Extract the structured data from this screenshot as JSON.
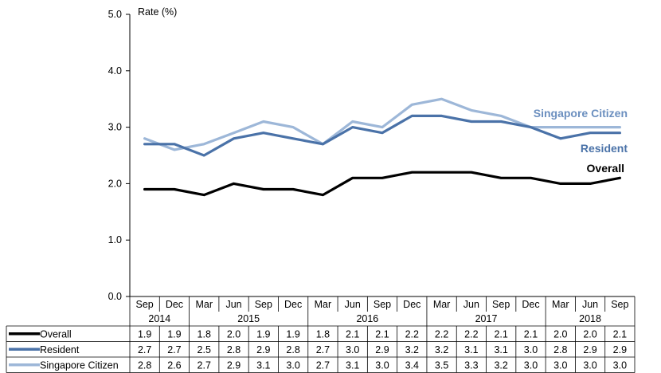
{
  "chart_data": {
    "type": "line",
    "ylabel": "Rate (%)",
    "ylim": [
      0,
      5
    ],
    "yticks": [
      "0.0",
      "1.0",
      "2.0",
      "3.0",
      "4.0",
      "5.0"
    ],
    "categories": [
      "Sep",
      "Dec",
      "Mar",
      "Jun",
      "Sep",
      "Dec",
      "Mar",
      "Jun",
      "Sep",
      "Dec",
      "Mar",
      "Jun",
      "Sep",
      "Dec",
      "Mar",
      "Jun",
      "Sep"
    ],
    "years": [
      {
        "label": "2014",
        "start": 0,
        "end": 1
      },
      {
        "label": "2015",
        "start": 2,
        "end": 5
      },
      {
        "label": "2016",
        "start": 6,
        "end": 9
      },
      {
        "label": "2017",
        "start": 10,
        "end": 13
      },
      {
        "label": "2018",
        "start": 14,
        "end": 16
      }
    ],
    "series": [
      {
        "name": "Overall",
        "color": "#000000",
        "values": [
          1.9,
          1.9,
          1.8,
          2.0,
          1.9,
          1.9,
          1.8,
          2.1,
          2.1,
          2.2,
          2.2,
          2.2,
          2.1,
          2.1,
          2.0,
          2.0,
          2.1
        ]
      },
      {
        "name": "Resident",
        "color": "#4a72a8",
        "values": [
          2.7,
          2.7,
          2.5,
          2.8,
          2.9,
          2.8,
          2.7,
          3.0,
          2.9,
          3.2,
          3.2,
          3.1,
          3.1,
          3.0,
          2.8,
          2.9,
          2.9
        ]
      },
      {
        "name": "Singapore Citizen",
        "color": "#9db7d8",
        "values": [
          2.8,
          2.6,
          2.7,
          2.9,
          3.1,
          3.0,
          2.7,
          3.1,
          3.0,
          3.4,
          3.5,
          3.3,
          3.2,
          3.0,
          3.0,
          3.0,
          3.0
        ]
      }
    ],
    "series_labels": [
      {
        "name": "Singapore Citizen",
        "color": "#6b8fbf"
      },
      {
        "name": "Resident",
        "color": "#4a72a8"
      },
      {
        "name": "Overall",
        "color": "#000000"
      }
    ],
    "grid": false,
    "legend": "data-table-bottom"
  }
}
